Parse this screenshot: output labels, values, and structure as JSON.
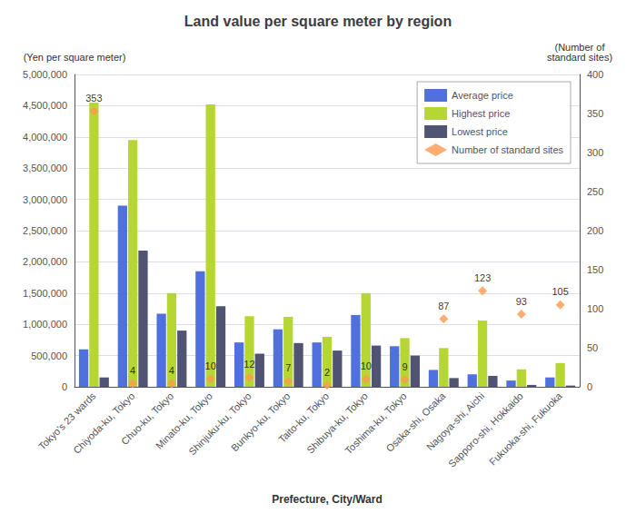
{
  "chart_data": {
    "type": "bar",
    "title": "Land value per square meter by region",
    "xlabel": "Prefecture, City/Ward",
    "ylabel": "(Yen per square meter)",
    "y2label": "(Number of\nstandard sites)",
    "categories": [
      "Tokyo's 23 wards",
      "Chiyoda-ku, Tokyo",
      "Chuo-ku, Tokyo",
      "Minato-ku, Tokyo",
      "Shinjuku-ku, Tokyo",
      "Bunkyo-ku, Tokyo",
      "Taito-ku, Tokyo",
      "Shibuya-ku, Tokyo",
      "Toshima-ku, Tokyo",
      "Osaka-shi, Osaka",
      "Nagoya-shi, Aichi",
      "Sapporo-shi, Hokkaido",
      "Fukuoka-shi, Fukuoka"
    ],
    "series": [
      {
        "name": "Average price",
        "type": "bar",
        "values": [
          600000,
          2900000,
          1170000,
          1850000,
          710000,
          920000,
          710000,
          1150000,
          650000,
          270000,
          200000,
          100000,
          150000
        ]
      },
      {
        "name": "Highest price",
        "type": "bar",
        "values": [
          4550000,
          3950000,
          1500000,
          4520000,
          1130000,
          1120000,
          800000,
          1500000,
          780000,
          620000,
          1060000,
          280000,
          380000
        ]
      },
      {
        "name": "Lowest price",
        "type": "bar",
        "values": [
          150000,
          2180000,
          900000,
          1290000,
          530000,
          700000,
          580000,
          660000,
          500000,
          140000,
          175000,
          30000,
          20000
        ]
      },
      {
        "name": "Number of standard sites",
        "type": "scatter",
        "marker": "diamond",
        "axis": "y2",
        "data_labels": true,
        "values": [
          353,
          4,
          4,
          10,
          12,
          7,
          2,
          10,
          9,
          87,
          123,
          93,
          105
        ]
      }
    ],
    "ylim": [
      0,
      5000000
    ],
    "yticks": [
      0,
      {
        "value": 500000,
        "label": "500,000"
      },
      {
        "value": 1000000,
        "label": "1,000,000"
      },
      {
        "value": 1500000,
        "label": "1,500,000"
      },
      {
        "value": 2000000,
        "label": "2,000,000"
      },
      {
        "value": 2500000,
        "label": "2,500,000"
      },
      {
        "value": 3000000,
        "label": "3,000,000"
      },
      {
        "value": 3500000,
        "label": "3,500,000"
      },
      {
        "value": 4000000,
        "label": "4,000,000"
      },
      {
        "value": 4500000,
        "label": "4,500,000"
      },
      {
        "value": 5000000,
        "label": "5,000,000"
      }
    ],
    "y2lim": [
      0,
      400
    ],
    "y2ticks": [
      0,
      50,
      100,
      150,
      200,
      250,
      300,
      350,
      400
    ],
    "grid": true,
    "legend": "upper right"
  }
}
